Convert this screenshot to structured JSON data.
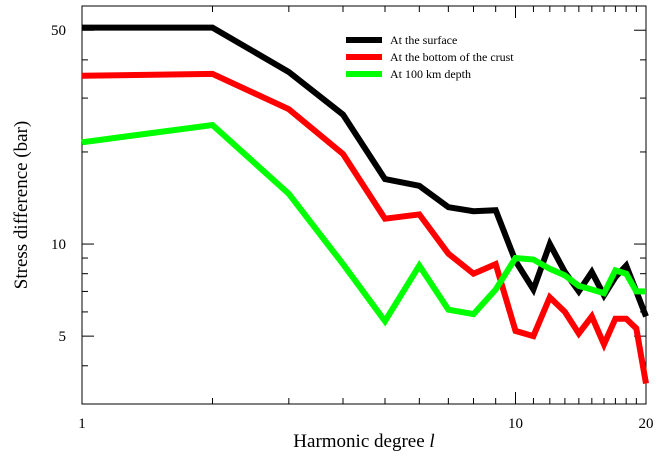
{
  "chart_data": {
    "type": "line",
    "title": "",
    "xlabel": "Harmonic degree",
    "xlabel_var": "l",
    "ylabel": "Stress difference (bar)",
    "x_scale": "log",
    "y_scale": "log",
    "xlim": [
      1,
      20
    ],
    "ylim": [
      3,
      60
    ],
    "x_ticks": [
      1,
      10,
      20
    ],
    "x_tick_labels": [
      "1",
      "10",
      "20"
    ],
    "y_ticks": [
      5,
      10,
      50
    ],
    "y_tick_labels": [
      "5",
      "10",
      "50"
    ],
    "grid": false,
    "legend_position": "top-right",
    "x": [
      1,
      2,
      3,
      4,
      5,
      6,
      7,
      8,
      9,
      10,
      11,
      12,
      13,
      14,
      15,
      16,
      17,
      18,
      19,
      20
    ],
    "series": [
      {
        "name": "At the surface",
        "color": "#000000",
        "values": [
          51,
          51,
          36.5,
          26.5,
          16.3,
          15.5,
          13.2,
          12.8,
          12.9,
          8.8,
          7.1,
          10.0,
          8.1,
          7.0,
          8.1,
          6.8,
          7.8,
          8.5,
          7.0,
          5.8
        ]
      },
      {
        "name": "At the bottom of the crust",
        "color": "#ff0000",
        "values": [
          35.5,
          36,
          27.6,
          19.7,
          12.1,
          12.5,
          9.3,
          8.0,
          8.6,
          5.2,
          5.0,
          6.7,
          6.0,
          5.1,
          5.8,
          4.7,
          5.7,
          5.7,
          5.3,
          3.5
        ]
      },
      {
        "name": "At 100 km depth",
        "color": "#00ff00",
        "values": [
          21.5,
          24.5,
          14.6,
          8.6,
          5.6,
          8.5,
          6.1,
          5.9,
          7.1,
          9.0,
          8.9,
          8.3,
          7.9,
          7.3,
          7.1,
          6.9,
          8.2,
          8.0,
          7.0,
          7.0
        ]
      }
    ]
  }
}
